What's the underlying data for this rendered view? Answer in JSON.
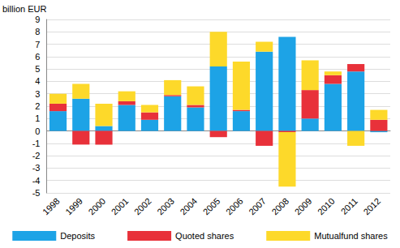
{
  "chart_data": {
    "type": "bar",
    "stacked": true,
    "y_label": "billion EUR",
    "categories": [
      "1998",
      "1999",
      "2000",
      "2001",
      "2002",
      "2003",
      "2004",
      "2005",
      "2006",
      "2007",
      "2008",
      "2009",
      "2010",
      "2011",
      "2012"
    ],
    "series": [
      {
        "name": "Deposits",
        "color": "#1da3e6",
        "values": [
          1.6,
          2.6,
          0.4,
          2.1,
          0.9,
          2.8,
          1.9,
          5.2,
          1.6,
          6.4,
          7.6,
          1.0,
          3.8,
          4.8,
          -0.1
        ]
      },
      {
        "name": "Quoted shares",
        "color": "#e8313a",
        "values": [
          0.6,
          -1.1,
          -1.1,
          0.3,
          0.6,
          0.1,
          0.2,
          -0.5,
          0.1,
          -1.2,
          -0.1,
          2.3,
          0.7,
          0.6,
          0.9
        ]
      },
      {
        "name": "Mutualfund shares",
        "color": "#fdd92a",
        "values": [
          0.8,
          1.2,
          1.8,
          0.8,
          0.6,
          1.2,
          1.5,
          2.8,
          3.9,
          0.8,
          -4.4,
          2.4,
          0.3,
          -1.2,
          0.8
        ]
      }
    ],
    "ylim": [
      -5,
      9
    ],
    "yticks": [
      -5,
      -4,
      -3,
      -2,
      -1,
      0,
      1,
      2,
      3,
      4,
      5,
      6,
      7,
      8,
      9
    ],
    "grid": true,
    "legend": "bottom"
  }
}
